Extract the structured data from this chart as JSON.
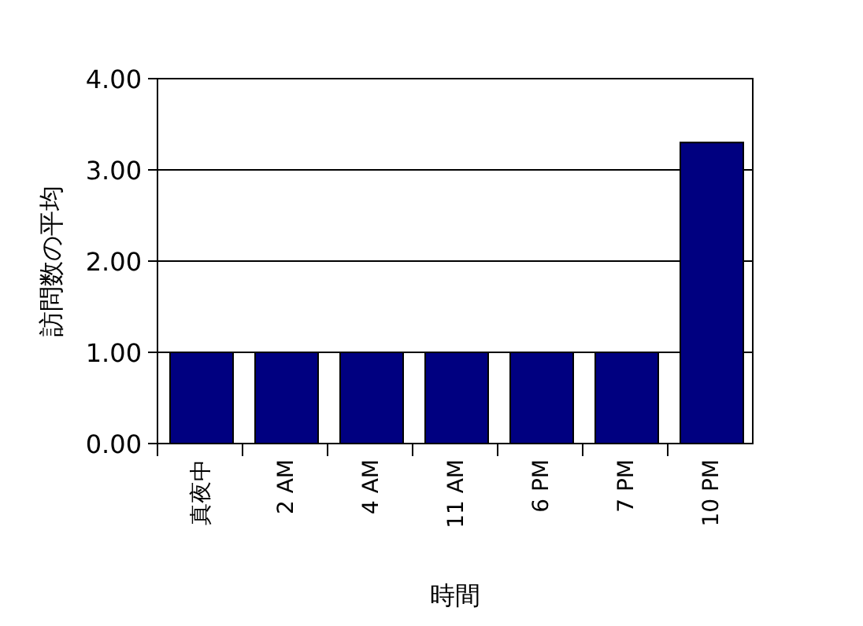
{
  "chart_data": {
    "type": "bar",
    "xlabel": "時間",
    "ylabel": "訪問数の平均",
    "categories": [
      "真夜中",
      "2 AM",
      "4 AM",
      "11 AM",
      "6 PM",
      "7 PM",
      "10 PM"
    ],
    "values": [
      1.0,
      1.0,
      1.0,
      1.0,
      1.0,
      1.0,
      3.3
    ],
    "color": "#000080",
    "ylim": [
      0,
      4
    ],
    "yticks": [
      {
        "value": 0,
        "label": "0.00"
      },
      {
        "value": 1,
        "label": "1.00"
      },
      {
        "value": 2,
        "label": "2.00"
      },
      {
        "value": 3,
        "label": "3.00"
      },
      {
        "value": 4,
        "label": "4.00"
      }
    ],
    "grid": "y"
  }
}
